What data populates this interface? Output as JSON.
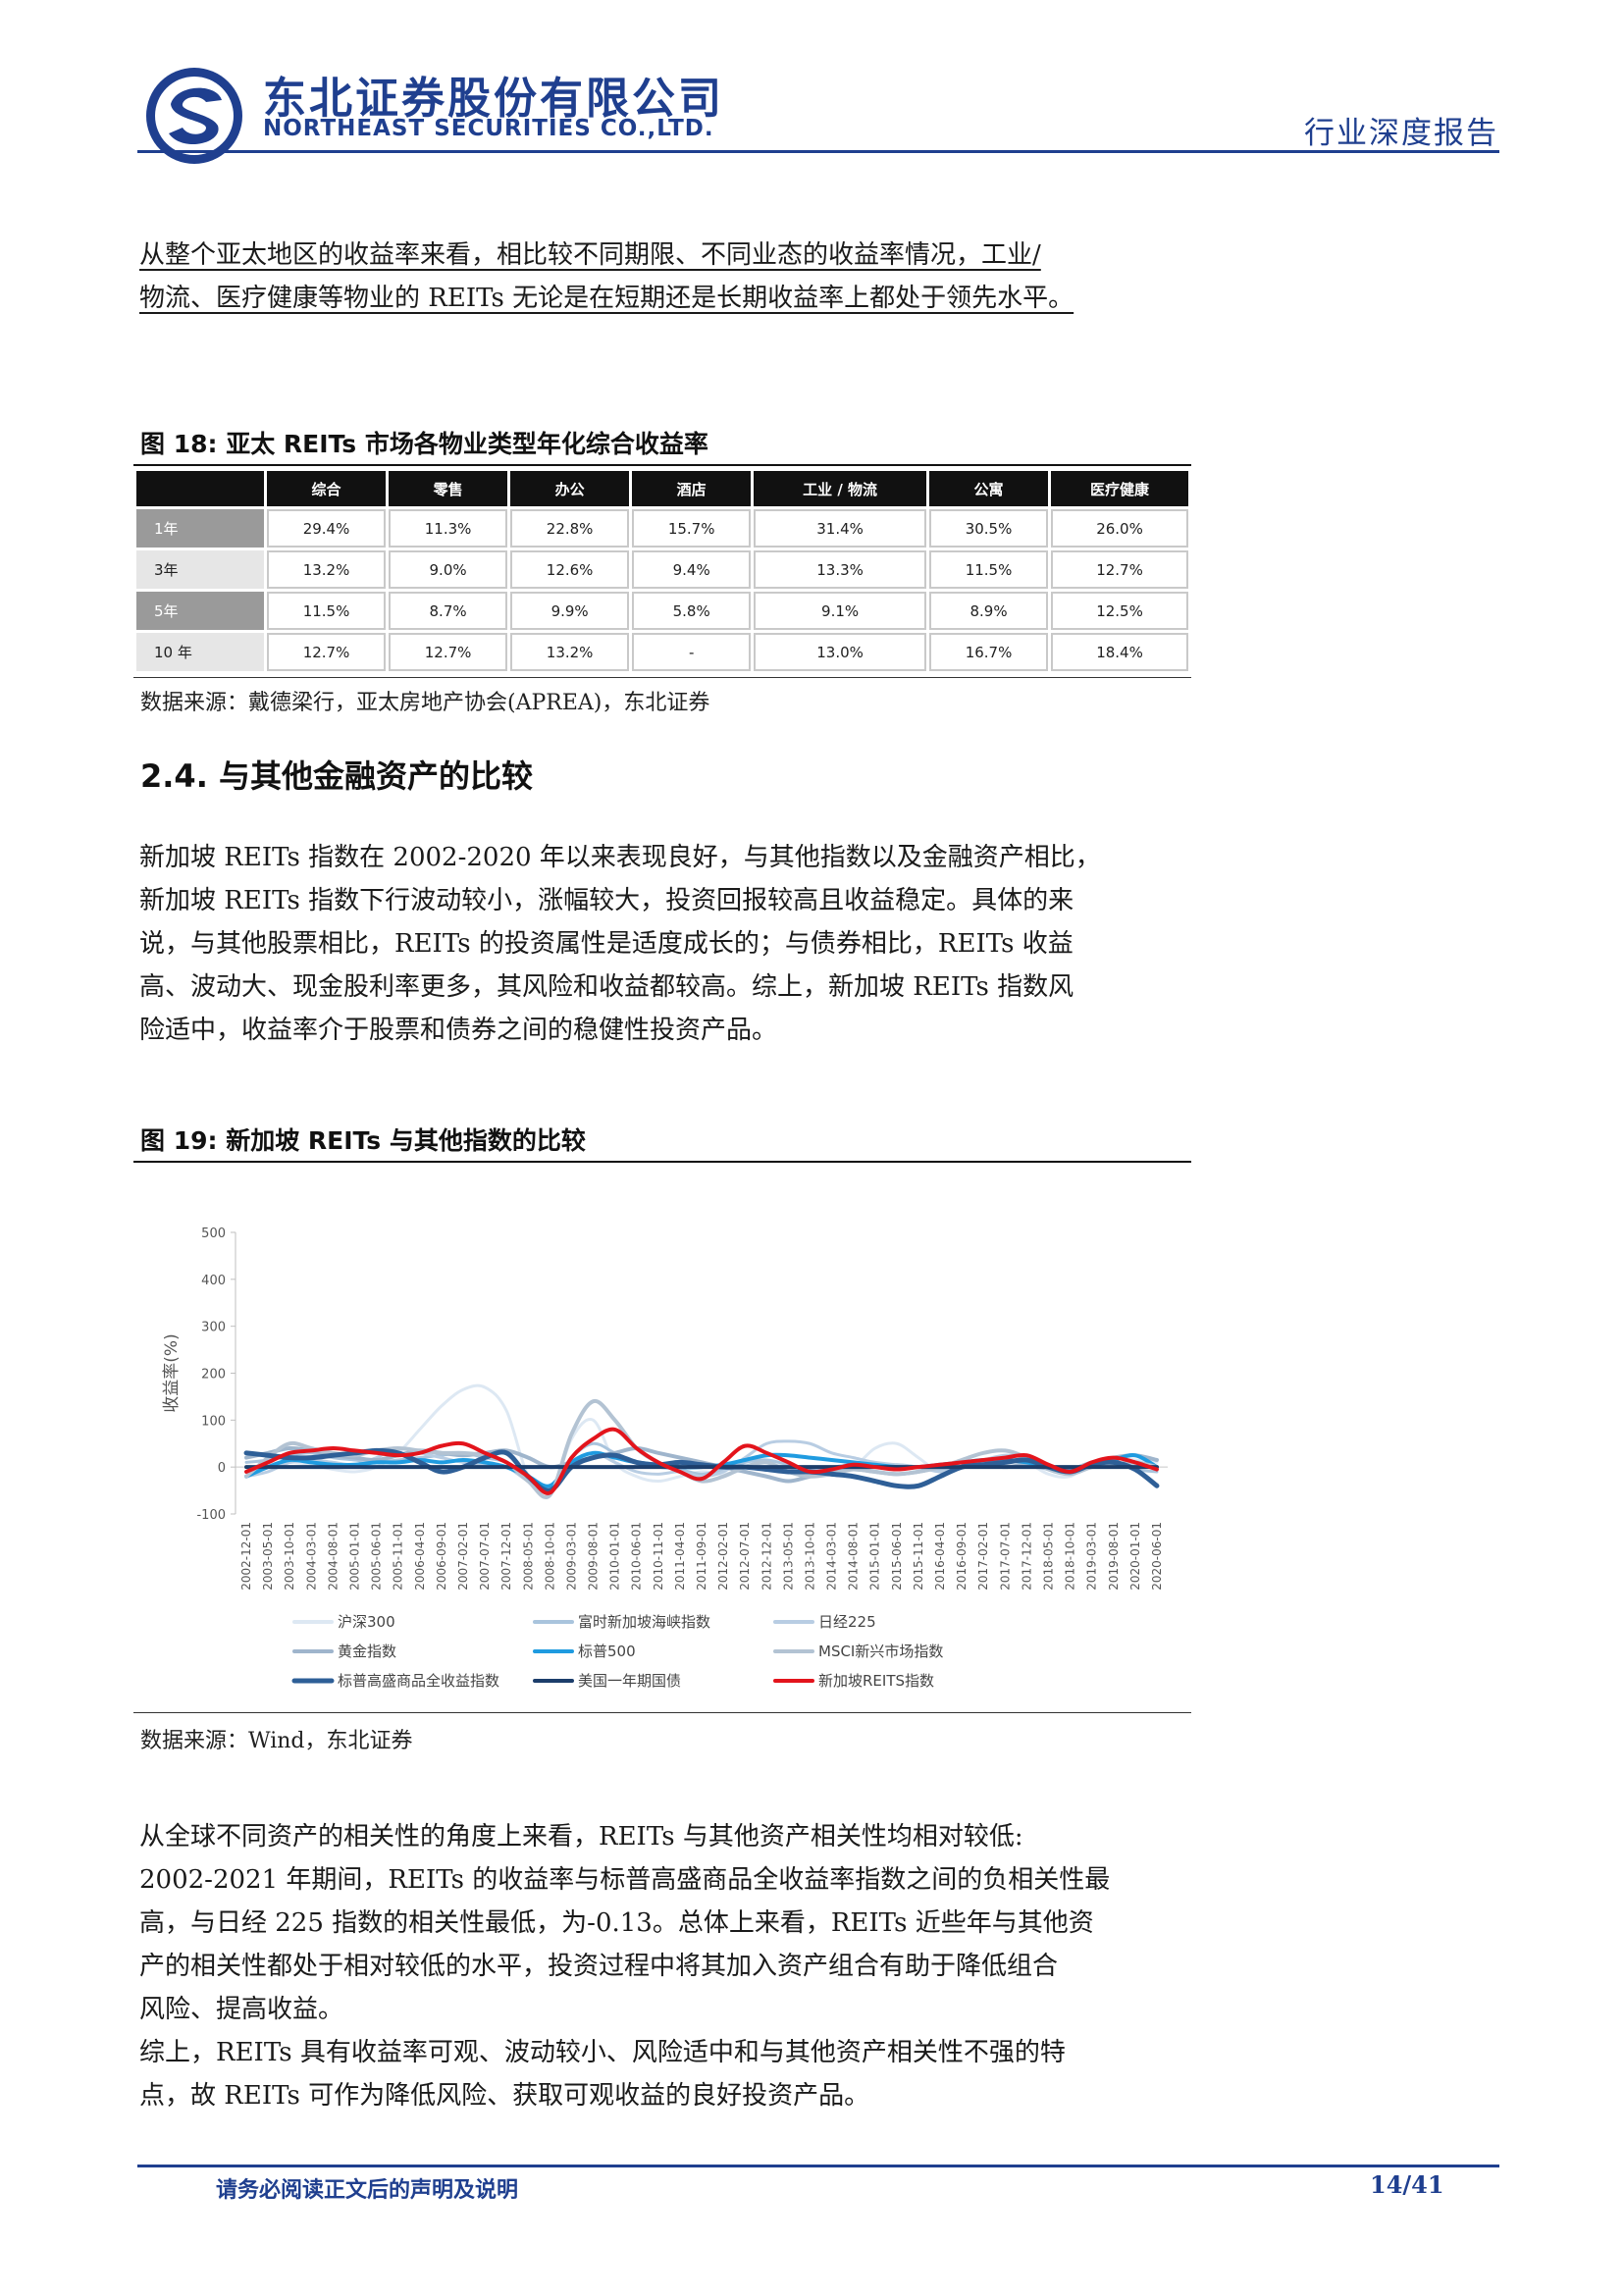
{
  "header": {
    "company_cn": "东北证券股份有限公司",
    "company_en": "NORTHEAST SECURITIES CO.,LTD.",
    "report_type": "行业深度报告"
  },
  "intro": {
    "lines": [
      "从整个亚太地区的收益率来看，相比较不同期限、不同业态的收益率情况，工业/",
      "物流、医疗健康等物业的 REITs 无论是在短期还是长期收益率上都处于领先水平。"
    ]
  },
  "figure18": {
    "title": "图  18:  亚太 REITs 市场各物业类型年化综合收益率",
    "columns": [
      "综合",
      "零售",
      "办公",
      "酒店",
      "工业 / 物流",
      "公寓",
      "医疗健康"
    ],
    "rows": [
      {
        "label": "1年",
        "values": [
          "29.4%",
          "11.3%",
          "22.8%",
          "15.7%",
          "31.4%",
          "30.5%",
          "26.0%"
        ]
      },
      {
        "label": "3年",
        "values": [
          "13.2%",
          "9.0%",
          "12.6%",
          "9.4%",
          "13.3%",
          "11.5%",
          "12.7%"
        ]
      },
      {
        "label": "5年",
        "values": [
          "11.5%",
          "8.7%",
          "9.9%",
          "5.8%",
          "9.1%",
          "8.9%",
          "12.5%"
        ]
      },
      {
        "label": "10 年",
        "values": [
          "12.7%",
          "12.7%",
          "13.2%",
          "-",
          "13.0%",
          "16.7%",
          "18.4%"
        ]
      }
    ],
    "source": "数据来源：戴德梁行，亚太房地产协会(APREA)，东北证券"
  },
  "section": {
    "heading": "2.4.   与其他金融资产的比较",
    "lines": [
      "新加坡 REITs 指数在 2002-2020 年以来表现良好，与其他指数以及金融资产相比，",
      "新加坡 REITs 指数下行波动较小，涨幅较大，投资回报较高且收益稳定。具体的来",
      "说，与其他股票相比，REITs 的投资属性是适度成长的；与债券相比，REITs 收益",
      "高、波动大、现金股利率更多，其风险和收益都较高。综上，新加坡 REITs 指数风",
      "险适中，收益率介于股票和债券之间的稳健性投资产品。"
    ]
  },
  "figure19": {
    "title": "图  19:  新加坡 REITs 与其他指数的比较",
    "source": "数据来源：Wind，东北证券"
  },
  "chart_data": {
    "type": "line",
    "ylabel": "收益率(%)",
    "ylim": [
      -100,
      500
    ],
    "yticks": [
      500,
      400,
      300,
      200,
      100,
      0,
      -100
    ],
    "x": [
      "2002-12-01",
      "2003-05-01",
      "2003-10-01",
      "2004-03-01",
      "2004-08-01",
      "2005-01-01",
      "2005-06-01",
      "2005-11-01",
      "2006-04-01",
      "2006-09-01",
      "2007-02-01",
      "2007-07-01",
      "2007-12-01",
      "2008-05-01",
      "2008-10-01",
      "2009-03-01",
      "2009-08-01",
      "2010-01-01",
      "2010-06-01",
      "2010-11-01",
      "2011-04-01",
      "2011-09-01",
      "2012-02-01",
      "2012-07-01",
      "2012-12-01",
      "2013-05-01",
      "2013-10-01",
      "2014-03-01",
      "2014-08-01",
      "2015-01-01",
      "2015-06-01",
      "2015-11-01",
      "2016-04-01",
      "2016-09-01",
      "2017-02-01",
      "2017-07-01",
      "2017-12-01",
      "2018-05-01",
      "2018-10-01",
      "2019-03-01",
      "2019-08-01",
      "2020-01-01",
      "2020-06-01"
    ],
    "legend_position": "bottom",
    "series": [
      {
        "name": "沪深300",
        "color": "#dde8f3",
        "width": 3,
        "values": [
          -10,
          5,
          10,
          5,
          -5,
          -10,
          0,
          30,
          80,
          130,
          165,
          170,
          120,
          -20,
          -60,
          60,
          100,
          10,
          -20,
          -30,
          -20,
          -10,
          -15,
          -5,
          10,
          0,
          -10,
          -5,
          0,
          40,
          50,
          20,
          -10,
          5,
          15,
          20,
          10,
          -15,
          -20,
          10,
          20,
          15,
          10
        ]
      },
      {
        "name": "富时新加坡海峡指数",
        "color": "#a9c4dd",
        "width": 3,
        "values": [
          10,
          15,
          25,
          30,
          20,
          15,
          10,
          15,
          20,
          25,
          30,
          20,
          10,
          -20,
          -40,
          20,
          50,
          30,
          10,
          0,
          -5,
          -15,
          -5,
          10,
          15,
          5,
          -5,
          0,
          5,
          0,
          5,
          0,
          -5,
          0,
          10,
          15,
          5,
          -5,
          -10,
          5,
          10,
          -5,
          -10
        ]
      },
      {
        "name": "日经225",
        "color": "#b8cde3",
        "width": 3,
        "values": [
          -20,
          -10,
          10,
          15,
          10,
          5,
          20,
          40,
          30,
          20,
          10,
          5,
          0,
          -30,
          -50,
          10,
          30,
          10,
          -10,
          -15,
          -10,
          -20,
          -10,
          20,
          50,
          55,
          50,
          30,
          20,
          10,
          5,
          0,
          -10,
          0,
          15,
          25,
          20,
          5,
          -10,
          0,
          5,
          5,
          0
        ]
      },
      {
        "name": "黄金指数",
        "color": "#9fb5cc",
        "width": 4,
        "values": [
          20,
          30,
          40,
          35,
          25,
          20,
          15,
          25,
          35,
          30,
          25,
          30,
          35,
          20,
          0,
          10,
          20,
          30,
          40,
          30,
          20,
          10,
          0,
          -10,
          -20,
          -30,
          -20,
          -10,
          -5,
          -10,
          -15,
          -10,
          0,
          10,
          5,
          0,
          5,
          0,
          -5,
          10,
          20,
          25,
          15
        ]
      },
      {
        "name": "标普500",
        "color": "#1f9be0",
        "width": 4,
        "values": [
          -20,
          0,
          15,
          10,
          5,
          5,
          10,
          10,
          15,
          10,
          15,
          10,
          0,
          -20,
          -40,
          10,
          30,
          20,
          10,
          5,
          0,
          0,
          5,
          15,
          25,
          25,
          20,
          15,
          10,
          5,
          0,
          0,
          5,
          10,
          15,
          15,
          10,
          0,
          -10,
          5,
          15,
          25,
          0
        ]
      },
      {
        "name": "MSCI新兴市场指数",
        "color": "#b3c3d3",
        "width": 4,
        "values": [
          -20,
          20,
          50,
          40,
          30,
          25,
          35,
          40,
          35,
          30,
          30,
          25,
          10,
          -30,
          -60,
          70,
          140,
          100,
          40,
          10,
          -10,
          -30,
          -20,
          0,
          10,
          -10,
          -20,
          -15,
          -5,
          -10,
          -15,
          -10,
          0,
          15,
          30,
          35,
          20,
          -5,
          -15,
          0,
          5,
          10,
          0
        ]
      },
      {
        "name": "标普高盛商品全收益指数",
        "color": "#2e5f97",
        "width": 5,
        "values": [
          30,
          25,
          20,
          20,
          25,
          30,
          35,
          30,
          10,
          -10,
          0,
          20,
          30,
          -20,
          -50,
          0,
          20,
          25,
          10,
          5,
          10,
          5,
          0,
          0,
          -5,
          -10,
          -10,
          -15,
          -20,
          -30,
          -40,
          -40,
          -20,
          0,
          5,
          10,
          15,
          0,
          -10,
          5,
          10,
          -5,
          -40
        ]
      },
      {
        "name": "美国一年期国债",
        "color": "#1c3e6b",
        "width": 4,
        "values": [
          0,
          0,
          0,
          0,
          0,
          0,
          0,
          0,
          0,
          0,
          0,
          0,
          0,
          0,
          0,
          0,
          0,
          0,
          0,
          0,
          0,
          0,
          0,
          0,
          0,
          0,
          0,
          0,
          0,
          0,
          0,
          0,
          0,
          0,
          0,
          0,
          0,
          0,
          0,
          0,
          0,
          0,
          0
        ]
      },
      {
        "name": "新加坡REITS指数",
        "color": "#e3141c",
        "width": 4,
        "values": [
          -10,
          10,
          30,
          35,
          40,
          35,
          30,
          25,
          30,
          45,
          50,
          30,
          10,
          -20,
          -55,
          20,
          60,
          80,
          40,
          10,
          -10,
          -25,
          10,
          45,
          30,
          10,
          -10,
          -5,
          5,
          0,
          -5,
          0,
          5,
          10,
          15,
          20,
          25,
          5,
          -10,
          10,
          20,
          10,
          -5
        ]
      }
    ]
  },
  "conclusion": {
    "lines": [
      "从全球不同资产的相关性的角度上来看，REITs 与其他资产相关性均相对较低:",
      "2002-2021 年期间，REITs 的收益率与标普高盛商品全收益率指数之间的负相关性最",
      "高，与日经 225 指数的相关性最低，为-0.13。总体上来看，REITs 近些年与其他资",
      "产的相关性都处于相对较低的水平，投资过程中将其加入资产组合有助于降低组合",
      "风险、提高收益。",
      "综上，REITs 具有收益率可观、波动较小、风险适中和与其他资产相关性不强的特",
      "点，故 REITs 可作为降低风险、获取可观收益的良好投资产品。"
    ]
  },
  "footer": {
    "disclaimer": "请务必阅读正文后的声明及说明",
    "page": "14/41"
  },
  "colors": {
    "brand": "#1f3f8f",
    "accent_red": "#e3141c"
  }
}
